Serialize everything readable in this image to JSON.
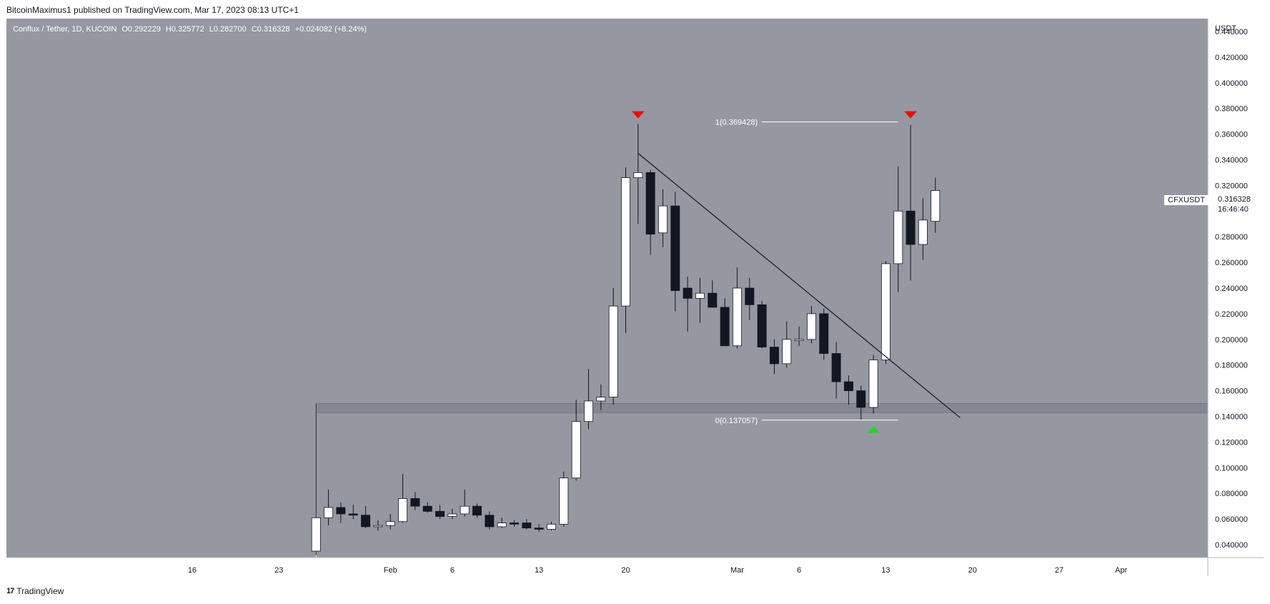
{
  "publisher": "BitcoinMaximus1 published on TradingView.com, Mar 17, 2023 08:13 UTC+1",
  "legend": {
    "symbol": "Conflux / Tether, 1D, KUCOIN",
    "open": "O0.292229",
    "high": "H0.325772",
    "low": "L0.282700",
    "close": "C0.316328",
    "change": "+0.024082 (+8.24%)"
  },
  "axis_unit": "USDT",
  "footer": {
    "brand": "TradingView",
    "mark": "17"
  },
  "price_tag": {
    "symbol": "CFXUSDT",
    "price": "0.316328",
    "countdown": "16:46:40"
  },
  "colors": {
    "background": "#9598a1",
    "up_candle": "#ffffff",
    "down_candle": "#131722",
    "wick": "#131722",
    "marker_top": "#ff0000",
    "marker_bottom": "#33cc33",
    "support_zone": "#787b86"
  },
  "chart_data": {
    "type": "candlestick",
    "ylim": [
      0.03,
      0.45
    ],
    "x_days": [
      1,
      98
    ],
    "y_ticks": [
      "0.040000",
      "0.060000",
      "0.080000",
      "0.100000",
      "0.120000",
      "0.140000",
      "0.160000",
      "0.180000",
      "0.200000",
      "0.220000",
      "0.240000",
      "0.260000",
      "0.280000",
      "0.300000",
      "0.320000",
      "0.340000",
      "0.360000",
      "0.380000",
      "0.400000",
      "0.420000",
      "0.440000"
    ],
    "x_ticks": [
      {
        "day": 16,
        "label": "16"
      },
      {
        "day": 23,
        "label": "23"
      },
      {
        "day": 32,
        "label": "Feb"
      },
      {
        "day": 37,
        "label": "6"
      },
      {
        "day": 44,
        "label": "13"
      },
      {
        "day": 51,
        "label": "20"
      },
      {
        "day": 60,
        "label": "Mar"
      },
      {
        "day": 65,
        "label": "6"
      },
      {
        "day": 72,
        "label": "13"
      },
      {
        "day": 79,
        "label": "20"
      },
      {
        "day": 86,
        "label": "27"
      },
      {
        "day": 91,
        "label": "Apr"
      }
    ],
    "candles": [
      {
        "d": 26,
        "o": 0.035,
        "h": 0.15,
        "l": 0.032,
        "c": 0.061
      },
      {
        "d": 27,
        "o": 0.061,
        "h": 0.083,
        "l": 0.055,
        "c": 0.069
      },
      {
        "d": 28,
        "o": 0.069,
        "h": 0.073,
        "l": 0.057,
        "c": 0.064
      },
      {
        "d": 29,
        "o": 0.064,
        "h": 0.071,
        "l": 0.06,
        "c": 0.063
      },
      {
        "d": 30,
        "o": 0.063,
        "h": 0.07,
        "l": 0.053,
        "c": 0.054
      },
      {
        "d": 31,
        "o": 0.054,
        "h": 0.059,
        "l": 0.051,
        "c": 0.055
      },
      {
        "d": 32,
        "o": 0.055,
        "h": 0.064,
        "l": 0.052,
        "c": 0.058
      },
      {
        "d": 33,
        "o": 0.058,
        "h": 0.095,
        "l": 0.057,
        "c": 0.076
      },
      {
        "d": 34,
        "o": 0.076,
        "h": 0.081,
        "l": 0.067,
        "c": 0.07
      },
      {
        "d": 35,
        "o": 0.07,
        "h": 0.073,
        "l": 0.065,
        "c": 0.066
      },
      {
        "d": 36,
        "o": 0.066,
        "h": 0.071,
        "l": 0.06,
        "c": 0.062
      },
      {
        "d": 37,
        "o": 0.062,
        "h": 0.068,
        "l": 0.06,
        "c": 0.064
      },
      {
        "d": 38,
        "o": 0.064,
        "h": 0.083,
        "l": 0.062,
        "c": 0.07
      },
      {
        "d": 39,
        "o": 0.07,
        "h": 0.072,
        "l": 0.061,
        "c": 0.063
      },
      {
        "d": 40,
        "o": 0.063,
        "h": 0.066,
        "l": 0.052,
        "c": 0.054
      },
      {
        "d": 41,
        "o": 0.054,
        "h": 0.061,
        "l": 0.053,
        "c": 0.057
      },
      {
        "d": 42,
        "o": 0.057,
        "h": 0.059,
        "l": 0.054,
        "c": 0.056
      },
      {
        "d": 43,
        "o": 0.057,
        "h": 0.06,
        "l": 0.052,
        "c": 0.053
      },
      {
        "d": 44,
        "o": 0.053,
        "h": 0.056,
        "l": 0.05,
        "c": 0.052
      },
      {
        "d": 45,
        "o": 0.052,
        "h": 0.058,
        "l": 0.051,
        "c": 0.056
      },
      {
        "d": 46,
        "o": 0.056,
        "h": 0.097,
        "l": 0.054,
        "c": 0.092
      },
      {
        "d": 47,
        "o": 0.092,
        "h": 0.153,
        "l": 0.09,
        "c": 0.136
      },
      {
        "d": 48,
        "o": 0.136,
        "h": 0.177,
        "l": 0.13,
        "c": 0.152
      },
      {
        "d": 49,
        "o": 0.152,
        "h": 0.165,
        "l": 0.145,
        "c": 0.155
      },
      {
        "d": 50,
        "o": 0.155,
        "h": 0.24,
        "l": 0.149,
        "c": 0.226
      },
      {
        "d": 51,
        "o": 0.226,
        "h": 0.334,
        "l": 0.205,
        "c": 0.326
      },
      {
        "d": 52,
        "o": 0.326,
        "h": 0.368,
        "l": 0.29,
        "c": 0.33
      },
      {
        "d": 53,
        "o": 0.33,
        "h": 0.332,
        "l": 0.266,
        "c": 0.282
      },
      {
        "d": 54,
        "o": 0.283,
        "h": 0.317,
        "l": 0.272,
        "c": 0.304
      },
      {
        "d": 55,
        "o": 0.304,
        "h": 0.315,
        "l": 0.222,
        "c": 0.238
      },
      {
        "d": 56,
        "o": 0.24,
        "h": 0.249,
        "l": 0.206,
        "c": 0.232
      },
      {
        "d": 57,
        "o": 0.232,
        "h": 0.248,
        "l": 0.213,
        "c": 0.236
      },
      {
        "d": 58,
        "o": 0.236,
        "h": 0.246,
        "l": 0.226,
        "c": 0.225
      },
      {
        "d": 59,
        "o": 0.225,
        "h": 0.232,
        "l": 0.195,
        "c": 0.195
      },
      {
        "d": 60,
        "o": 0.195,
        "h": 0.256,
        "l": 0.193,
        "c": 0.24
      },
      {
        "d": 61,
        "o": 0.24,
        "h": 0.248,
        "l": 0.215,
        "c": 0.227
      },
      {
        "d": 62,
        "o": 0.227,
        "h": 0.23,
        "l": 0.193,
        "c": 0.194
      },
      {
        "d": 63,
        "o": 0.194,
        "h": 0.2,
        "l": 0.173,
        "c": 0.181
      },
      {
        "d": 64,
        "o": 0.181,
        "h": 0.214,
        "l": 0.178,
        "c": 0.2
      },
      {
        "d": 65,
        "o": 0.199,
        "h": 0.21,
        "l": 0.195,
        "c": 0.2
      },
      {
        "d": 66,
        "o": 0.2,
        "h": 0.226,
        "l": 0.197,
        "c": 0.22
      },
      {
        "d": 67,
        "o": 0.22,
        "h": 0.224,
        "l": 0.184,
        "c": 0.189
      },
      {
        "d": 68,
        "o": 0.189,
        "h": 0.198,
        "l": 0.154,
        "c": 0.167
      },
      {
        "d": 69,
        "o": 0.167,
        "h": 0.172,
        "l": 0.149,
        "c": 0.16
      },
      {
        "d": 70,
        "o": 0.16,
        "h": 0.164,
        "l": 0.137,
        "c": 0.147
      },
      {
        "d": 71,
        "o": 0.147,
        "h": 0.188,
        "l": 0.142,
        "c": 0.184
      },
      {
        "d": 72,
        "o": 0.184,
        "h": 0.261,
        "l": 0.181,
        "c": 0.259
      },
      {
        "d": 73,
        "o": 0.259,
        "h": 0.335,
        "l": 0.237,
        "c": 0.3
      },
      {
        "d": 74,
        "o": 0.3,
        "h": 0.367,
        "l": 0.246,
        "c": 0.274
      },
      {
        "d": 75,
        "o": 0.274,
        "h": 0.31,
        "l": 0.262,
        "c": 0.293
      },
      {
        "d": 76,
        "o": 0.292,
        "h": 0.326,
        "l": 0.283,
        "c": 0.316
      }
    ],
    "support_zone": {
      "from_day": 26,
      "to_day": 98,
      "low": 0.143,
      "high": 0.15
    },
    "trendline": {
      "from": {
        "d": 52,
        "y": 0.345
      },
      "to": {
        "d": 78,
        "y": 0.139
      }
    },
    "fib_levels": [
      {
        "label": "1(0.369428)",
        "price": 0.369428,
        "from_day": 62,
        "to_day": 73
      },
      {
        "label": "0(0.137057)",
        "price": 0.137057,
        "from_day": 62,
        "to_day": 73
      }
    ],
    "markers": [
      {
        "day": 52,
        "price": 0.375,
        "kind": "down",
        "color": "#ff0000"
      },
      {
        "day": 74,
        "price": 0.375,
        "kind": "down",
        "color": "#ff0000"
      },
      {
        "day": 71,
        "price": 0.13,
        "kind": "up",
        "color": "#33cc33"
      }
    ]
  }
}
